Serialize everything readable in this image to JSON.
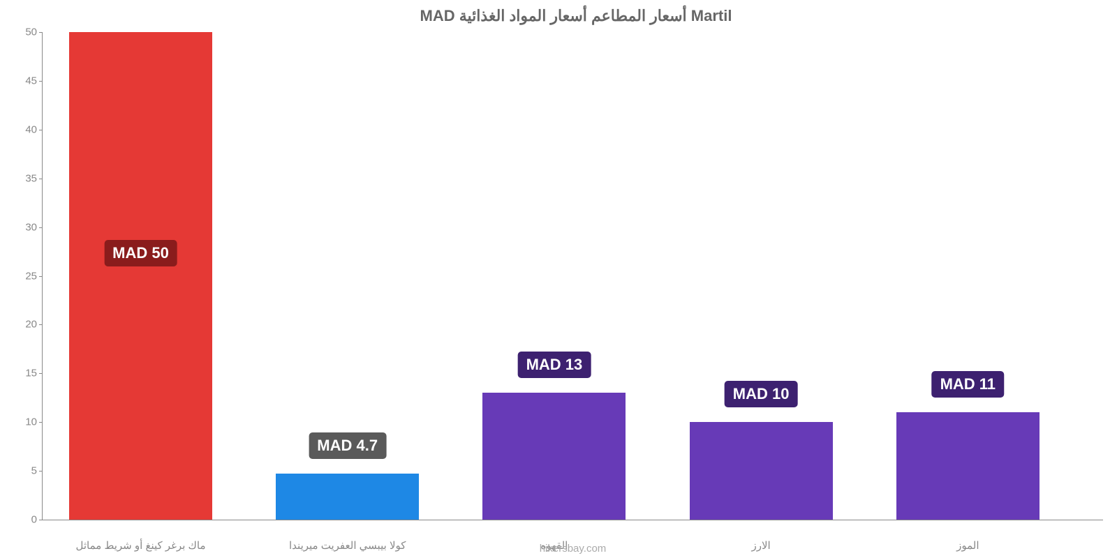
{
  "chart": {
    "type": "bar",
    "title": "MAD أسعار المطاعم أسعار المواد الغذائية Martil",
    "title_fontsize": 22,
    "title_color": "#666666",
    "background_color": "#ffffff",
    "axis_color": "#888888",
    "label_color": "#888888",
    "label_fontsize": 15,
    "watermark": "hikersbay.com",
    "watermark_color": "#aaaaaa",
    "ylim": [
      0,
      50
    ],
    "ytick_step": 5,
    "yticks": [
      "0",
      "5",
      "10",
      "15",
      "20",
      "25",
      "30",
      "35",
      "40",
      "45",
      "50"
    ],
    "bar_width_pct": 13.5,
    "bar_gap_pct": 6,
    "bar_left_offset_pct": 2.5,
    "data_label_fontsize": 22,
    "categories": [
      "ماك برغر كينغ أو شريط مماثل",
      "كولا بيبسي العفريت ميريندا",
      "القهوه",
      "الارز",
      "الموز"
    ],
    "values": [
      50,
      4.7,
      13,
      10,
      11
    ],
    "display_labels": [
      "MAD 50",
      "MAD 4.7",
      "MAD 13",
      "MAD 10",
      "MAD 11"
    ],
    "bar_colors": [
      "#e53935",
      "#1e88e5",
      "#673ab7",
      "#673ab7",
      "#673ab7"
    ],
    "label_bg_colors": [
      "#8a1c1c",
      "#5a5a5a",
      "#3d2170",
      "#3d2170",
      "#3d2170"
    ]
  }
}
